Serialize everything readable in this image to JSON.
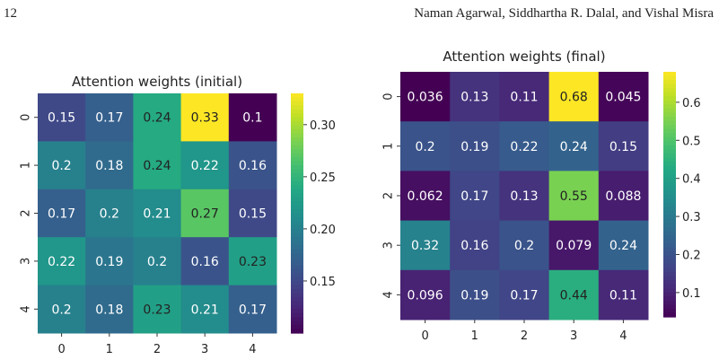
{
  "header": {
    "page_number": "12",
    "authors": "Naman Agarwal, Siddhartha R. Dalal, and Vishal Misra"
  },
  "chart_data": [
    {
      "type": "heatmap",
      "title": "Attention weights (initial)",
      "xlabel": "",
      "ylabel": "",
      "x_ticks": [
        "0",
        "1",
        "2",
        "3",
        "4"
      ],
      "y_ticks": [
        "0",
        "1",
        "2",
        "3",
        "4"
      ],
      "values": [
        [
          0.15,
          0.17,
          0.24,
          0.33,
          0.1
        ],
        [
          0.2,
          0.18,
          0.24,
          0.22,
          0.16
        ],
        [
          0.17,
          0.2,
          0.21,
          0.27,
          0.15
        ],
        [
          0.22,
          0.19,
          0.2,
          0.16,
          0.23
        ],
        [
          0.2,
          0.18,
          0.23,
          0.21,
          0.17
        ]
      ],
      "colorbar": {
        "colormap": "viridis",
        "vmin": 0.1,
        "vmax": 0.33,
        "ticks": [
          0.15,
          0.2,
          0.25,
          0.3
        ],
        "tick_labels": [
          "0.15",
          "0.20",
          "0.25",
          "0.30"
        ]
      }
    },
    {
      "type": "heatmap",
      "title": "Attention weights (final)",
      "xlabel": "",
      "ylabel": "",
      "x_ticks": [
        "0",
        "1",
        "2",
        "3",
        "4"
      ],
      "y_ticks": [
        "0",
        "1",
        "2",
        "3",
        "4"
      ],
      "values": [
        [
          0.036,
          0.13,
          0.11,
          0.68,
          0.045
        ],
        [
          0.2,
          0.19,
          0.22,
          0.24,
          0.15
        ],
        [
          0.062,
          0.17,
          0.13,
          0.55,
          0.088
        ],
        [
          0.32,
          0.16,
          0.2,
          0.079,
          0.24
        ],
        [
          0.096,
          0.19,
          0.17,
          0.44,
          0.11
        ]
      ],
      "colorbar": {
        "colormap": "viridis",
        "vmin": 0.036,
        "vmax": 0.68,
        "ticks": [
          0.1,
          0.2,
          0.3,
          0.4,
          0.5,
          0.6
        ],
        "tick_labels": [
          "0.1",
          "0.2",
          "0.3",
          "0.4",
          "0.5",
          "0.6"
        ]
      }
    }
  ]
}
